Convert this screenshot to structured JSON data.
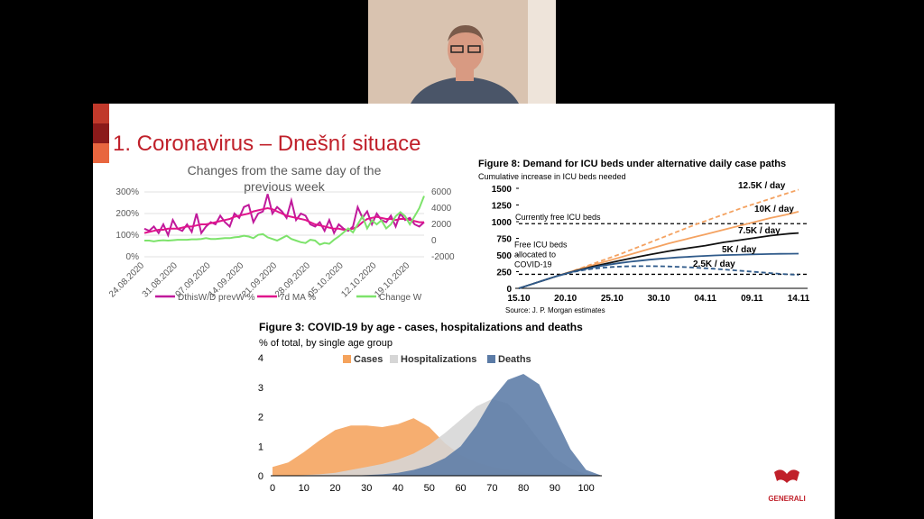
{
  "slide": {
    "title": "1. Coronavirus – Dnešní situace",
    "logo": "GENERALI"
  },
  "chart_data": [
    {
      "type": "line",
      "title": "Changes from the same day of the previous week",
      "categories": [
        "24.08.2020",
        null,
        null,
        null,
        null,
        null,
        null,
        "31.08.2020",
        null,
        null,
        null,
        null,
        null,
        null,
        "07.09.2020",
        null,
        null,
        null,
        null,
        null,
        null,
        "14.09.2020",
        null,
        null,
        null,
        null,
        null,
        null,
        "21.09.2020",
        null,
        null,
        null,
        null,
        null,
        null,
        "28.09.2020",
        null,
        null,
        null,
        null,
        null,
        null,
        "05.10.2020",
        null,
        null,
        null,
        null,
        null,
        null,
        "12.10.2020",
        null,
        null,
        null,
        null,
        null,
        null,
        "19.10.2020",
        null,
        null,
        null
      ],
      "series": [
        {
          "name": "DthisW/D prevW %",
          "color": "#c0199b",
          "values": [
            130,
            120,
            140,
            110,
            150,
            100,
            170,
            130,
            120,
            150,
            115,
            200,
            110,
            140,
            160,
            150,
            190,
            160,
            140,
            200,
            180,
            230,
            240,
            160,
            200,
            210,
            290,
            200,
            230,
            210,
            180,
            260,
            170,
            200,
            190,
            150,
            140,
            160,
            120,
            170,
            110,
            150,
            130,
            120,
            140,
            230,
            180,
            210,
            150,
            200,
            170,
            160,
            190,
            140,
            200,
            170,
            180,
            150,
            140,
            160
          ]
        },
        {
          "name": "7d MA %",
          "color": "#e0148c",
          "values": [
            110,
            115,
            120,
            125,
            125,
            130,
            130,
            130,
            135,
            140,
            140,
            145,
            150,
            150,
            155,
            160,
            165,
            170,
            175,
            185,
            190,
            195,
            200,
            210,
            215,
            220,
            225,
            220,
            210,
            200,
            190,
            185,
            180,
            175,
            170,
            160,
            150,
            145,
            140,
            135,
            130,
            130,
            125,
            125,
            130,
            140,
            160,
            175,
            180,
            185,
            180,
            175,
            175,
            170,
            175,
            175,
            170,
            165,
            160,
            160
          ]
        },
        {
          "name": "Change W",
          "color": "#7de36b",
          "axis": "y2",
          "values": [
            0,
            0,
            -100,
            0,
            50,
            0,
            50,
            100,
            100,
            100,
            150,
            150,
            200,
            300,
            200,
            200,
            250,
            300,
            300,
            400,
            450,
            600,
            500,
            300,
            700,
            800,
            400,
            200,
            0,
            300,
            600,
            200,
            0,
            -200,
            -300,
            100,
            0,
            -500,
            -300,
            -400,
            100,
            500,
            1000,
            1500,
            1000,
            2000,
            3000,
            1500,
            2500,
            2000,
            2500,
            1500,
            2000,
            3000,
            3500,
            3000,
            2000,
            3000,
            4000,
            5500
          ]
        }
      ],
      "ylim": [
        0,
        300
      ],
      "yticks": [
        {
          "value": 0,
          "label": "0%"
        },
        {
          "value": 100,
          "label": "100%"
        },
        {
          "value": 200,
          "label": "200%"
        },
        {
          "value": 300,
          "label": "300%"
        }
      ],
      "y2lim": [
        -2000,
        6000
      ],
      "y2ticks": [
        -2000,
        0,
        2000,
        4000,
        6000
      ],
      "grid": true
    },
    {
      "type": "line",
      "title": "Figure 8: Demand for ICU beds under alternative daily case paths",
      "subtitle": "Cumulative increase in ICU beds needed",
      "source": "Source: J. P. Morgan estimates",
      "categories": [
        "15.10",
        null,
        null,
        null,
        null,
        "20.10",
        null,
        null,
        null,
        null,
        "25.10",
        null,
        null,
        null,
        null,
        "30.10",
        null,
        null,
        null,
        null,
        "04.11",
        null,
        null,
        null,
        null,
        "09.11",
        null,
        null,
        null,
        null,
        "14.11"
      ],
      "series": [
        {
          "name": "12.5K / day",
          "color": "#f4a261",
          "line_style": "dashed",
          "values": [
            0,
            45,
            90,
            135,
            180,
            225,
            270,
            320,
            370,
            420,
            470,
            520,
            575,
            630,
            685,
            740,
            795,
            850,
            905,
            960,
            1010,
            1060,
            1110,
            1160,
            1210,
            1255,
            1300,
            1345,
            1390,
            1435,
            1480
          ]
        },
        {
          "name": "10K / day",
          "color": "#f4a261",
          "line_style": "solid",
          "values": [
            0,
            45,
            90,
            135,
            180,
            225,
            268,
            310,
            350,
            390,
            430,
            470,
            510,
            550,
            590,
            630,
            670,
            705,
            740,
            775,
            810,
            845,
            880,
            915,
            950,
            985,
            1020,
            1055,
            1085,
            1115,
            1150
          ]
        },
        {
          "name": "7.5K / day",
          "color": "#111111",
          "line_style": "solid",
          "values": [
            0,
            45,
            90,
            135,
            180,
            222,
            260,
            295,
            330,
            360,
            390,
            420,
            450,
            478,
            505,
            530,
            555,
            578,
            600,
            620,
            640,
            665,
            690,
            710,
            730,
            750,
            770,
            790,
            805,
            820,
            830
          ]
        },
        {
          "name": "5K / day",
          "color": "#2f5a8a",
          "line_style": "solid",
          "values": [
            0,
            45,
            90,
            135,
            180,
            220,
            255,
            285,
            315,
            340,
            362,
            382,
            400,
            415,
            430,
            442,
            453,
            463,
            472,
            480,
            487,
            493,
            498,
            502,
            506,
            509,
            512,
            515,
            517,
            519,
            520
          ]
        },
        {
          "name": "2.5K / day",
          "color": "#2f5a8a",
          "line_style": "dashed",
          "values": [
            0,
            45,
            90,
            135,
            180,
            218,
            250,
            275,
            295,
            310,
            320,
            327,
            331,
            333,
            333,
            331,
            328,
            323,
            317,
            310,
            302,
            293,
            283,
            272,
            261,
            250,
            239,
            228,
            218,
            209,
            200
          ]
        }
      ],
      "reference_lines": [
        {
          "label": [
            "Currently free ICU beds"
          ],
          "value": 970
        },
        {
          "label": [
            "Free ICU beds",
            "allocated to",
            "COVID-19"
          ],
          "value": 210
        }
      ],
      "ylim": [
        0,
        1500
      ],
      "yticks": [
        0,
        250,
        500,
        750,
        1000,
        1250,
        1500
      ]
    },
    {
      "type": "area",
      "title": "Figure 3: COVID-19 by age - cases, hospitalizations and deaths",
      "subtitle": "% of total, by single age group",
      "x": [
        0,
        5,
        10,
        15,
        20,
        25,
        30,
        35,
        40,
        45,
        50,
        55,
        60,
        65,
        70,
        75,
        80,
        85,
        90,
        95,
        100,
        105
      ],
      "series": [
        {
          "name": "Cases",
          "color": "#f5a35c",
          "values": [
            0.3,
            0.45,
            0.8,
            1.2,
            1.55,
            1.7,
            1.7,
            1.65,
            1.75,
            1.95,
            1.65,
            1.1,
            0.7,
            0.45,
            0.3,
            0.2,
            0.1,
            0.05,
            0.02,
            0,
            0,
            0
          ]
        },
        {
          "name": "Hospitalizations",
          "color": "#d6d6d6",
          "values": [
            0,
            0,
            0.02,
            0.05,
            0.1,
            0.2,
            0.3,
            0.4,
            0.55,
            0.75,
            1.05,
            1.45,
            1.9,
            2.35,
            2.6,
            2.45,
            1.9,
            1.2,
            0.6,
            0.25,
            0.05,
            0
          ]
        },
        {
          "name": "Deaths",
          "color": "#5b7ba6",
          "values": [
            0,
            0,
            0,
            0,
            0,
            0,
            0.02,
            0.05,
            0.1,
            0.2,
            0.35,
            0.6,
            1.0,
            1.7,
            2.6,
            3.25,
            3.45,
            3.1,
            2.0,
            0.9,
            0.2,
            0
          ]
        }
      ],
      "xlim": [
        0,
        105
      ],
      "xticks": [
        0,
        10,
        20,
        30,
        40,
        50,
        60,
        70,
        80,
        90,
        100
      ],
      "ylim": [
        0,
        4
      ],
      "yticks": [
        0,
        1,
        2,
        3,
        4
      ]
    }
  ]
}
